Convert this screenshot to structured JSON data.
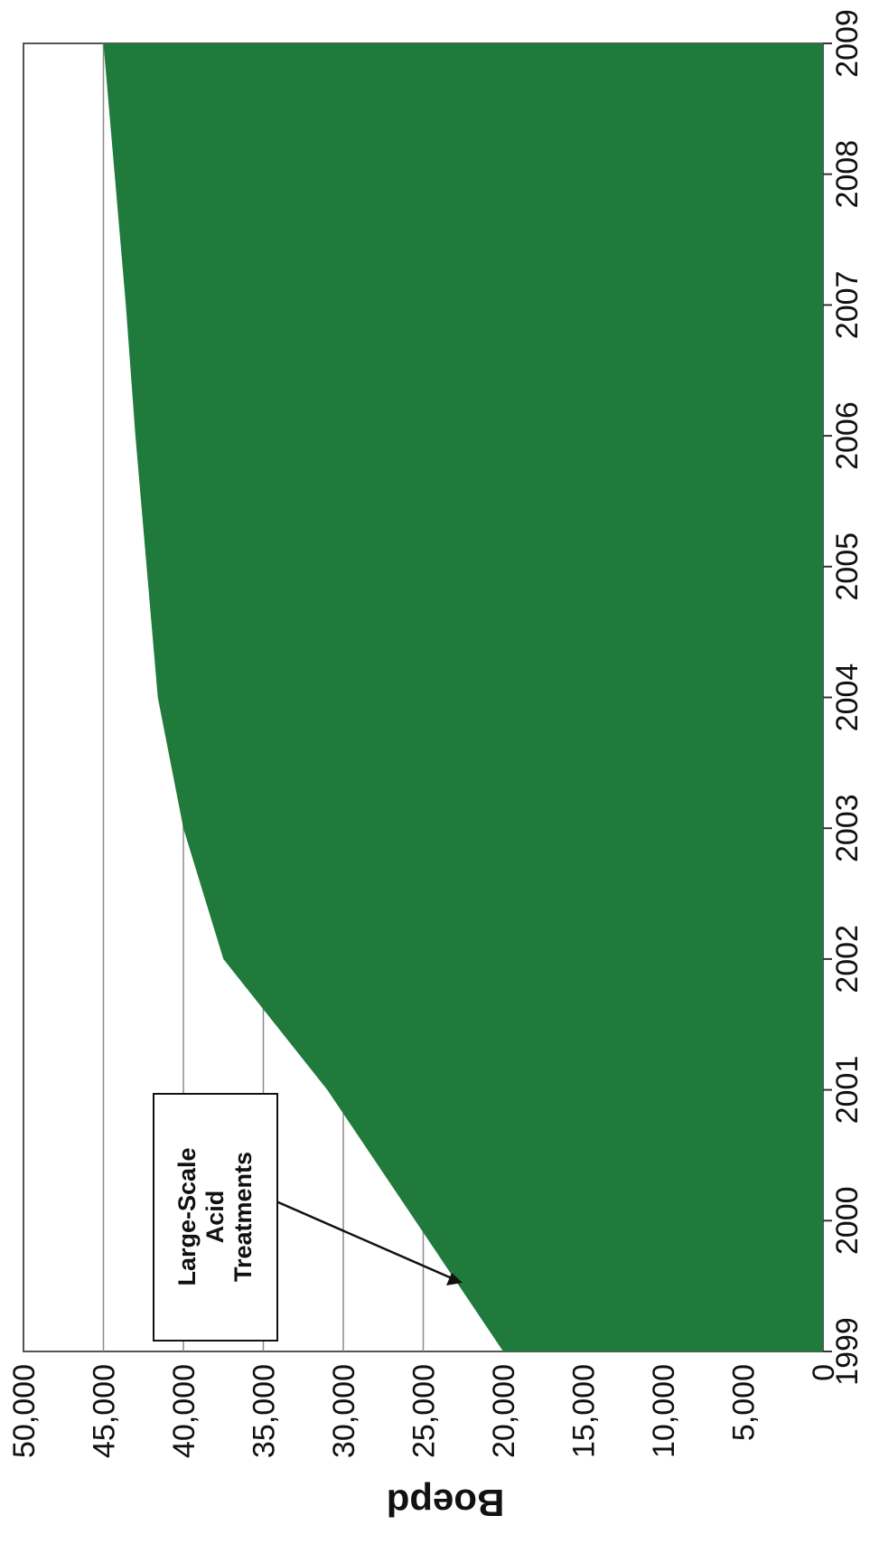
{
  "chart_data": {
    "type": "area",
    "title": "",
    "xlabel": "",
    "ylabel": "Boepd",
    "x": [
      1999,
      2000,
      2001,
      2002,
      2003,
      2004,
      2005,
      2006,
      2007,
      2008,
      2009
    ],
    "series": [
      {
        "values": [
          20000,
          25500,
          31000,
          37500,
          40000,
          41600,
          42300,
          43000,
          43600,
          44300,
          45000
        ]
      }
    ],
    "xlim": [
      1999,
      2009
    ],
    "ylim": [
      0,
      50000
    ],
    "x_ticks": [
      "1999",
      "2000",
      "2001",
      "2002",
      "2003",
      "2004",
      "2005",
      "2006",
      "2007",
      "2008",
      "2009"
    ],
    "y_ticks": [
      "0",
      "5,000",
      "10,000",
      "15,000",
      "20,000",
      "25,000",
      "30,000",
      "35,000",
      "40,000",
      "45,000",
      "50,000"
    ],
    "grid": true,
    "fill_color": "#1f7a3c",
    "annotations": [
      {
        "lines": [
          "Large-Scale",
          "Acid",
          "Treatments"
        ],
        "x": 1999.1,
        "y": 20600
      }
    ]
  }
}
